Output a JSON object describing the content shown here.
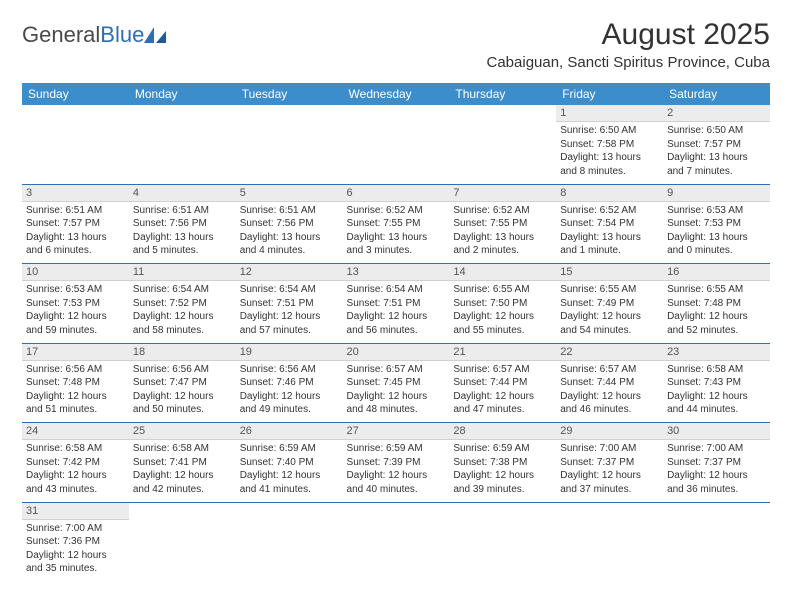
{
  "logo": {
    "text1": "General",
    "text2": "Blue"
  },
  "title": "August 2025",
  "location": "Cabaiguan, Sancti Spiritus Province, Cuba",
  "colors": {
    "header_bg": "#3c8dcc",
    "header_fg": "#ffffff",
    "daynum_bg": "#ececec",
    "row_divider": "#2d6fb5",
    "text": "#333333"
  },
  "day_headers": [
    "Sunday",
    "Monday",
    "Tuesday",
    "Wednesday",
    "Thursday",
    "Friday",
    "Saturday"
  ],
  "weeks": [
    [
      null,
      null,
      null,
      null,
      null,
      {
        "n": "1",
        "sr": "6:50 AM",
        "ss": "7:58 PM",
        "dl": "13 hours and 8 minutes."
      },
      {
        "n": "2",
        "sr": "6:50 AM",
        "ss": "7:57 PM",
        "dl": "13 hours and 7 minutes."
      }
    ],
    [
      {
        "n": "3",
        "sr": "6:51 AM",
        "ss": "7:57 PM",
        "dl": "13 hours and 6 minutes."
      },
      {
        "n": "4",
        "sr": "6:51 AM",
        "ss": "7:56 PM",
        "dl": "13 hours and 5 minutes."
      },
      {
        "n": "5",
        "sr": "6:51 AM",
        "ss": "7:56 PM",
        "dl": "13 hours and 4 minutes."
      },
      {
        "n": "6",
        "sr": "6:52 AM",
        "ss": "7:55 PM",
        "dl": "13 hours and 3 minutes."
      },
      {
        "n": "7",
        "sr": "6:52 AM",
        "ss": "7:55 PM",
        "dl": "13 hours and 2 minutes."
      },
      {
        "n": "8",
        "sr": "6:52 AM",
        "ss": "7:54 PM",
        "dl": "13 hours and 1 minute."
      },
      {
        "n": "9",
        "sr": "6:53 AM",
        "ss": "7:53 PM",
        "dl": "13 hours and 0 minutes."
      }
    ],
    [
      {
        "n": "10",
        "sr": "6:53 AM",
        "ss": "7:53 PM",
        "dl": "12 hours and 59 minutes."
      },
      {
        "n": "11",
        "sr": "6:54 AM",
        "ss": "7:52 PM",
        "dl": "12 hours and 58 minutes."
      },
      {
        "n": "12",
        "sr": "6:54 AM",
        "ss": "7:51 PM",
        "dl": "12 hours and 57 minutes."
      },
      {
        "n": "13",
        "sr": "6:54 AM",
        "ss": "7:51 PM",
        "dl": "12 hours and 56 minutes."
      },
      {
        "n": "14",
        "sr": "6:55 AM",
        "ss": "7:50 PM",
        "dl": "12 hours and 55 minutes."
      },
      {
        "n": "15",
        "sr": "6:55 AM",
        "ss": "7:49 PM",
        "dl": "12 hours and 54 minutes."
      },
      {
        "n": "16",
        "sr": "6:55 AM",
        "ss": "7:48 PM",
        "dl": "12 hours and 52 minutes."
      }
    ],
    [
      {
        "n": "17",
        "sr": "6:56 AM",
        "ss": "7:48 PM",
        "dl": "12 hours and 51 minutes."
      },
      {
        "n": "18",
        "sr": "6:56 AM",
        "ss": "7:47 PM",
        "dl": "12 hours and 50 minutes."
      },
      {
        "n": "19",
        "sr": "6:56 AM",
        "ss": "7:46 PM",
        "dl": "12 hours and 49 minutes."
      },
      {
        "n": "20",
        "sr": "6:57 AM",
        "ss": "7:45 PM",
        "dl": "12 hours and 48 minutes."
      },
      {
        "n": "21",
        "sr": "6:57 AM",
        "ss": "7:44 PM",
        "dl": "12 hours and 47 minutes."
      },
      {
        "n": "22",
        "sr": "6:57 AM",
        "ss": "7:44 PM",
        "dl": "12 hours and 46 minutes."
      },
      {
        "n": "23",
        "sr": "6:58 AM",
        "ss": "7:43 PM",
        "dl": "12 hours and 44 minutes."
      }
    ],
    [
      {
        "n": "24",
        "sr": "6:58 AM",
        "ss": "7:42 PM",
        "dl": "12 hours and 43 minutes."
      },
      {
        "n": "25",
        "sr": "6:58 AM",
        "ss": "7:41 PM",
        "dl": "12 hours and 42 minutes."
      },
      {
        "n": "26",
        "sr": "6:59 AM",
        "ss": "7:40 PM",
        "dl": "12 hours and 41 minutes."
      },
      {
        "n": "27",
        "sr": "6:59 AM",
        "ss": "7:39 PM",
        "dl": "12 hours and 40 minutes."
      },
      {
        "n": "28",
        "sr": "6:59 AM",
        "ss": "7:38 PM",
        "dl": "12 hours and 39 minutes."
      },
      {
        "n": "29",
        "sr": "7:00 AM",
        "ss": "7:37 PM",
        "dl": "12 hours and 37 minutes."
      },
      {
        "n": "30",
        "sr": "7:00 AM",
        "ss": "7:37 PM",
        "dl": "12 hours and 36 minutes."
      }
    ],
    [
      {
        "n": "31",
        "sr": "7:00 AM",
        "ss": "7:36 PM",
        "dl": "12 hours and 35 minutes."
      },
      null,
      null,
      null,
      null,
      null,
      null
    ]
  ],
  "labels": {
    "sunrise": "Sunrise:",
    "sunset": "Sunset:",
    "daylight": "Daylight:"
  }
}
